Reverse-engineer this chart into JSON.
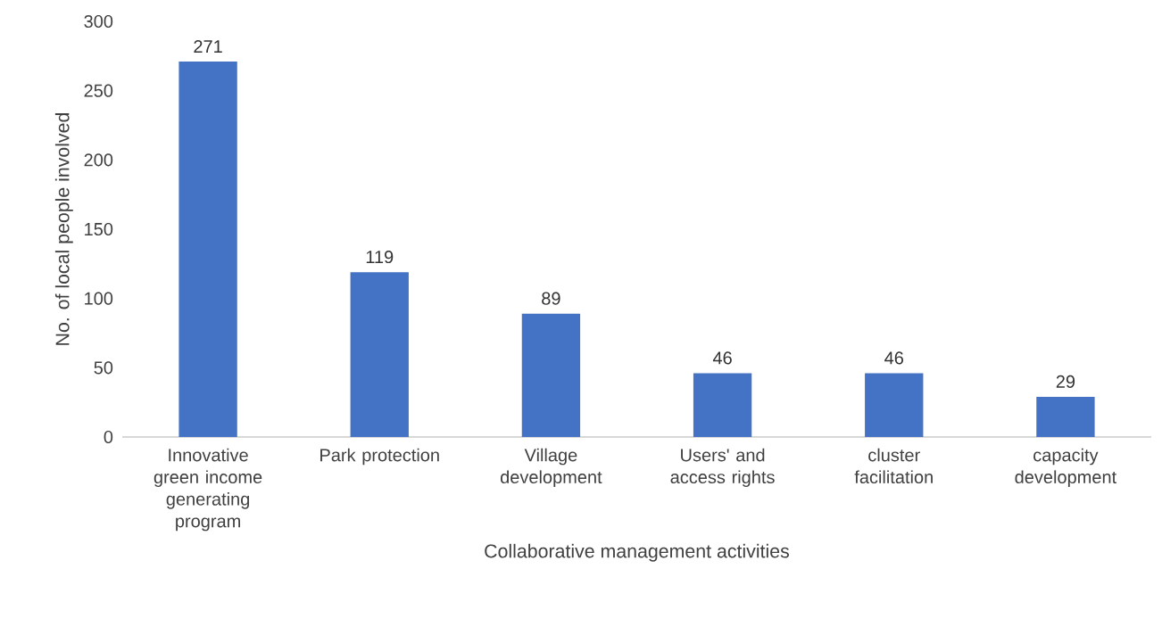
{
  "chart_data": {
    "type": "bar",
    "xlabel": "Collaborative management activities",
    "ylabel": "No. of local people involved",
    "categories": [
      "Innovative green income generating program",
      "Park protection",
      "Village development",
      "Users' and access rights",
      "cluster facilitation",
      "capacity development"
    ],
    "values": [
      271,
      119,
      89,
      46,
      46,
      29
    ],
    "color": "#4472c4",
    "ylim": [
      0,
      300
    ],
    "yticks": [
      0,
      50,
      100,
      150,
      200,
      250,
      300
    ],
    "data_labels": true,
    "grid": false
  }
}
